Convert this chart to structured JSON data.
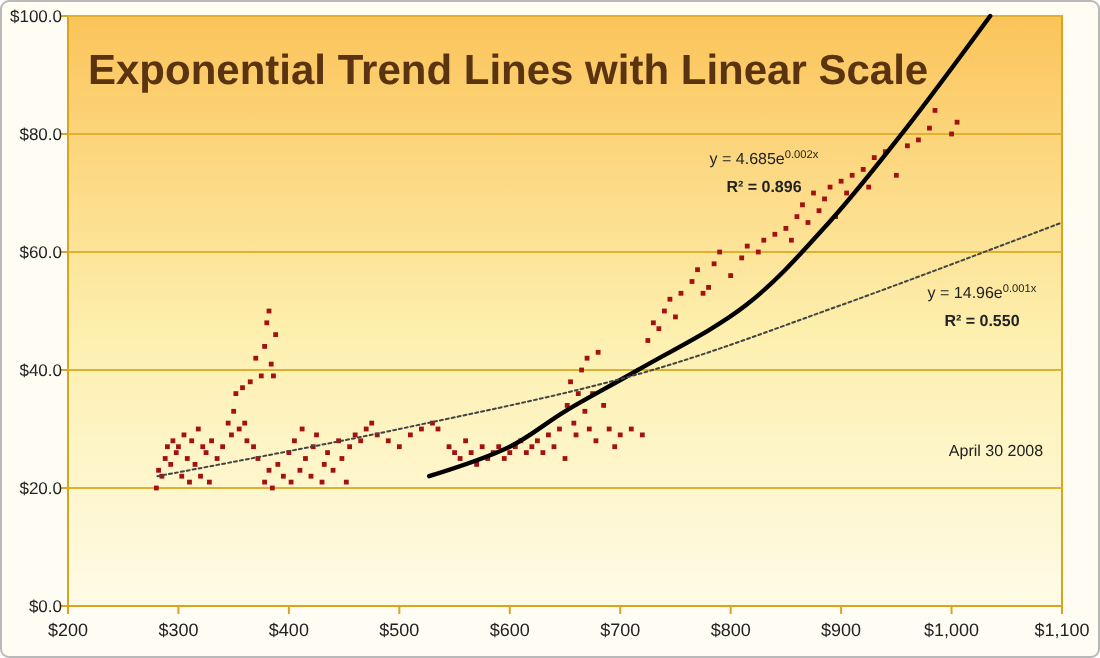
{
  "chart_data": {
    "type": "scatter",
    "title": "Exponential Trend Lines with Linear Scale",
    "xlim": [
      200,
      1100
    ],
    "ylim": [
      0,
      100
    ],
    "xticks": [
      {
        "value": 200,
        "label": "$200"
      },
      {
        "value": 300,
        "label": "$300"
      },
      {
        "value": 400,
        "label": "$400"
      },
      {
        "value": 500,
        "label": "$500"
      },
      {
        "value": 600,
        "label": "$600"
      },
      {
        "value": 700,
        "label": "$700"
      },
      {
        "value": 800,
        "label": "$800"
      },
      {
        "value": 900,
        "label": "$900"
      },
      {
        "value": 1000,
        "label": "$1,000"
      },
      {
        "value": 1100,
        "label": "$1,100"
      }
    ],
    "yticks": [
      {
        "value": 0,
        "label": "$0.0"
      },
      {
        "value": 20,
        "label": "$20.0"
      },
      {
        "value": 40,
        "label": "$40.0"
      },
      {
        "value": 60,
        "label": "$60.0"
      },
      {
        "value": 80,
        "label": "$80.0"
      },
      {
        "value": 100,
        "label": "$100.0"
      }
    ],
    "grid": "y",
    "series": [
      {
        "color": "#a31212",
        "marker": "square",
        "x": [
          280,
          282,
          285,
          288,
          290,
          293,
          295,
          298,
          300,
          303,
          305,
          308,
          310,
          312,
          315,
          318,
          320,
          322,
          325,
          328,
          330,
          335,
          340,
          345,
          348,
          350,
          352,
          355,
          358,
          360,
          362,
          365,
          368,
          370,
          372,
          375,
          378,
          380,
          382,
          384,
          386,
          388,
          378,
          382,
          385,
          390,
          395,
          400,
          402,
          405,
          410,
          412,
          415,
          420,
          422,
          425,
          430,
          432,
          435,
          440,
          445,
          448,
          452,
          455,
          460,
          465,
          470,
          475,
          480,
          490,
          500,
          510,
          520,
          530,
          535,
          545,
          550,
          555,
          560,
          565,
          570,
          575,
          580,
          585,
          590,
          595,
          600,
          605,
          610,
          615,
          620,
          625,
          630,
          635,
          640,
          645,
          650,
          652,
          655,
          658,
          660,
          662,
          665,
          668,
          670,
          672,
          675,
          678,
          680,
          685,
          690,
          695,
          700,
          710,
          720,
          725,
          730,
          735,
          740,
          745,
          750,
          755,
          765,
          770,
          775,
          780,
          785,
          790,
          800,
          810,
          815,
          825,
          830,
          840,
          850,
          855,
          860,
          865,
          870,
          875,
          880,
          885,
          890,
          895,
          900,
          905,
          910,
          920,
          925,
          930,
          940,
          950,
          960,
          970,
          980,
          985,
          1000,
          1005
        ],
        "values": [
          20,
          23,
          22,
          25,
          27,
          24,
          28,
          26,
          27,
          22,
          29,
          25,
          21,
          28,
          24,
          30,
          22,
          27,
          26,
          21,
          28,
          25,
          27,
          31,
          29,
          33,
          36,
          30,
          37,
          31,
          28,
          38,
          27,
          42,
          25,
          39,
          44,
          48,
          50,
          41,
          39,
          46,
          21,
          23,
          20,
          24,
          22,
          26,
          21,
          28,
          23,
          30,
          25,
          22,
          27,
          29,
          21,
          24,
          26,
          23,
          28,
          25,
          21,
          27,
          29,
          28,
          30,
          31,
          29,
          28,
          27,
          29,
          30,
          31,
          30,
          27,
          26,
          25,
          28,
          26,
          24,
          27,
          25,
          26,
          27,
          25,
          26,
          27,
          28,
          26,
          27,
          28,
          26,
          29,
          27,
          30,
          25,
          34,
          38,
          31,
          29,
          36,
          40,
          33,
          42,
          30,
          36,
          28,
          43,
          34,
          30,
          27,
          29,
          30,
          29,
          45,
          48,
          47,
          50,
          52,
          49,
          53,
          55,
          57,
          53,
          54,
          58,
          60,
          56,
          59,
          61,
          60,
          62,
          63,
          64,
          62,
          66,
          68,
          65,
          70,
          67,
          69,
          71,
          66,
          72,
          70,
          73,
          74,
          71,
          76,
          77,
          73,
          78,
          79,
          81,
          84,
          80,
          82
        ]
      },
      {
        "type": "line",
        "color": "#000000",
        "line_style": "solid",
        "marker": "none",
        "x": [
          527,
          600,
          650,
          716,
          814,
          889,
          959,
          1035
        ],
        "values": [
          22,
          27,
          33,
          40,
          51,
          65,
          81,
          100
        ]
      },
      {
        "type": "line",
        "color": "#444444",
        "line_style": "dotted",
        "marker": "none",
        "x": [
          281,
          500,
          720,
          900,
          1100
        ],
        "values": [
          22,
          30,
          39.5,
          51,
          65
        ]
      }
    ],
    "annotations": [
      "y = 4.685e$^{0.002x}$",
      "R² = 0.896",
      "y = 14.96e$^{0.001x}$",
      "R² = 0.550",
      "April 30 2008"
    ]
  }
}
